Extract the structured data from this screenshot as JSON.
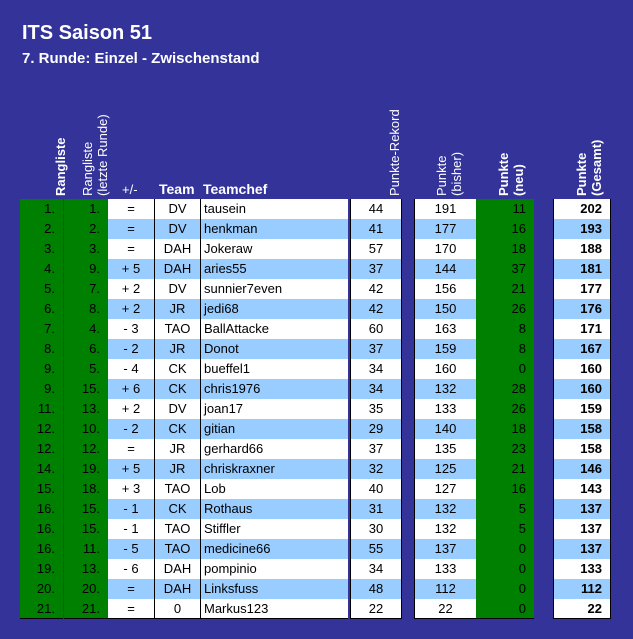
{
  "title": "ITS Saison 51",
  "subtitle": "7. Runde: Einzel - Zwischenstand",
  "headers": {
    "rangliste": "Rangliste",
    "rangliste_letzte_1": "Rangliste",
    "rangliste_letzte_2": "(letzte Runde)",
    "diff": "+/-",
    "team": "Team",
    "teamchef": "Teamchef",
    "rekord": "Punkte-Rekord",
    "bisher_1": "Punkte",
    "bisher_2": "(bisher)",
    "neu_1": "Punkte",
    "neu_2": "(neu)",
    "gesamt_1": "Punkte",
    "gesamt_2": "(Gesamt)"
  },
  "colors": {
    "background": "#333399",
    "green": "#008000",
    "row_alt": "#99ccff",
    "row": "#ffffff"
  },
  "rows": [
    {
      "rank": "1.",
      "prev": "1.",
      "diff": "=",
      "team": "DV",
      "chef": "tausein",
      "rekord": "44",
      "bisher": "191",
      "neu": "11",
      "gesamt": "202"
    },
    {
      "rank": "2.",
      "prev": "2.",
      "diff": "=",
      "team": "DV",
      "chef": "henkman",
      "rekord": "41",
      "bisher": "177",
      "neu": "16",
      "gesamt": "193"
    },
    {
      "rank": "3.",
      "prev": "3.",
      "diff": "=",
      "team": "DAH",
      "chef": "Jokeraw",
      "rekord": "57",
      "bisher": "170",
      "neu": "18",
      "gesamt": "188"
    },
    {
      "rank": "4.",
      "prev": "9.",
      "diff": "+ 5",
      "team": "DAH",
      "chef": "aries55",
      "rekord": "37",
      "bisher": "144",
      "neu": "37",
      "gesamt": "181"
    },
    {
      "rank": "5.",
      "prev": "7.",
      "diff": "+ 2",
      "team": "DV",
      "chef": "sunnier7even",
      "rekord": "42",
      "bisher": "156",
      "neu": "21",
      "gesamt": "177"
    },
    {
      "rank": "6.",
      "prev": "8.",
      "diff": "+ 2",
      "team": "JR",
      "chef": "jedi68",
      "rekord": "42",
      "bisher": "150",
      "neu": "26",
      "gesamt": "176"
    },
    {
      "rank": "7.",
      "prev": "4.",
      "diff": "- 3",
      "team": "TAO",
      "chef": "BallAttacke",
      "rekord": "60",
      "bisher": "163",
      "neu": "8",
      "gesamt": "171"
    },
    {
      "rank": "8.",
      "prev": "6.",
      "diff": "- 2",
      "team": "JR",
      "chef": "Donot",
      "rekord": "37",
      "bisher": "159",
      "neu": "8",
      "gesamt": "167"
    },
    {
      "rank": "9.",
      "prev": "5.",
      "diff": "- 4",
      "team": "CK",
      "chef": "bueffel1",
      "rekord": "34",
      "bisher": "160",
      "neu": "0",
      "gesamt": "160"
    },
    {
      "rank": "9.",
      "prev": "15.",
      "diff": "+ 6",
      "team": "CK",
      "chef": "chris1976",
      "rekord": "34",
      "bisher": "132",
      "neu": "28",
      "gesamt": "160"
    },
    {
      "rank": "11.",
      "prev": "13.",
      "diff": "+ 2",
      "team": "DV",
      "chef": "joan17",
      "rekord": "35",
      "bisher": "133",
      "neu": "26",
      "gesamt": "159"
    },
    {
      "rank": "12.",
      "prev": "10.",
      "diff": "- 2",
      "team": "CK",
      "chef": "gitian",
      "rekord": "29",
      "bisher": "140",
      "neu": "18",
      "gesamt": "158"
    },
    {
      "rank": "12.",
      "prev": "12.",
      "diff": "=",
      "team": "JR",
      "chef": "gerhard66",
      "rekord": "37",
      "bisher": "135",
      "neu": "23",
      "gesamt": "158"
    },
    {
      "rank": "14.",
      "prev": "19.",
      "diff": "+ 5",
      "team": "JR",
      "chef": "chriskraxner",
      "rekord": "32",
      "bisher": "125",
      "neu": "21",
      "gesamt": "146"
    },
    {
      "rank": "15.",
      "prev": "18.",
      "diff": "+ 3",
      "team": "TAO",
      "chef": "Lob",
      "rekord": "40",
      "bisher": "127",
      "neu": "16",
      "gesamt": "143"
    },
    {
      "rank": "16.",
      "prev": "15.",
      "diff": "- 1",
      "team": "CK",
      "chef": "Rothaus",
      "rekord": "31",
      "bisher": "132",
      "neu": "5",
      "gesamt": "137"
    },
    {
      "rank": "16.",
      "prev": "15.",
      "diff": "- 1",
      "team": "TAO",
      "chef": "Stiffler",
      "rekord": "30",
      "bisher": "132",
      "neu": "5",
      "gesamt": "137"
    },
    {
      "rank": "16.",
      "prev": "11.",
      "diff": "- 5",
      "team": "TAO",
      "chef": "medicine66",
      "rekord": "55",
      "bisher": "137",
      "neu": "0",
      "gesamt": "137"
    },
    {
      "rank": "19.",
      "prev": "13.",
      "diff": "- 6",
      "team": "DAH",
      "chef": "pompinio",
      "rekord": "34",
      "bisher": "133",
      "neu": "0",
      "gesamt": "133"
    },
    {
      "rank": "20.",
      "prev": "20.",
      "diff": "=",
      "team": "DAH",
      "chef": "Linksfuss",
      "rekord": "48",
      "bisher": "112",
      "neu": "0",
      "gesamt": "112"
    },
    {
      "rank": "21.",
      "prev": "21.",
      "diff": "=",
      "team": "0",
      "chef": "Markus123",
      "rekord": "22",
      "bisher": "22",
      "neu": "0",
      "gesamt": "22"
    }
  ]
}
